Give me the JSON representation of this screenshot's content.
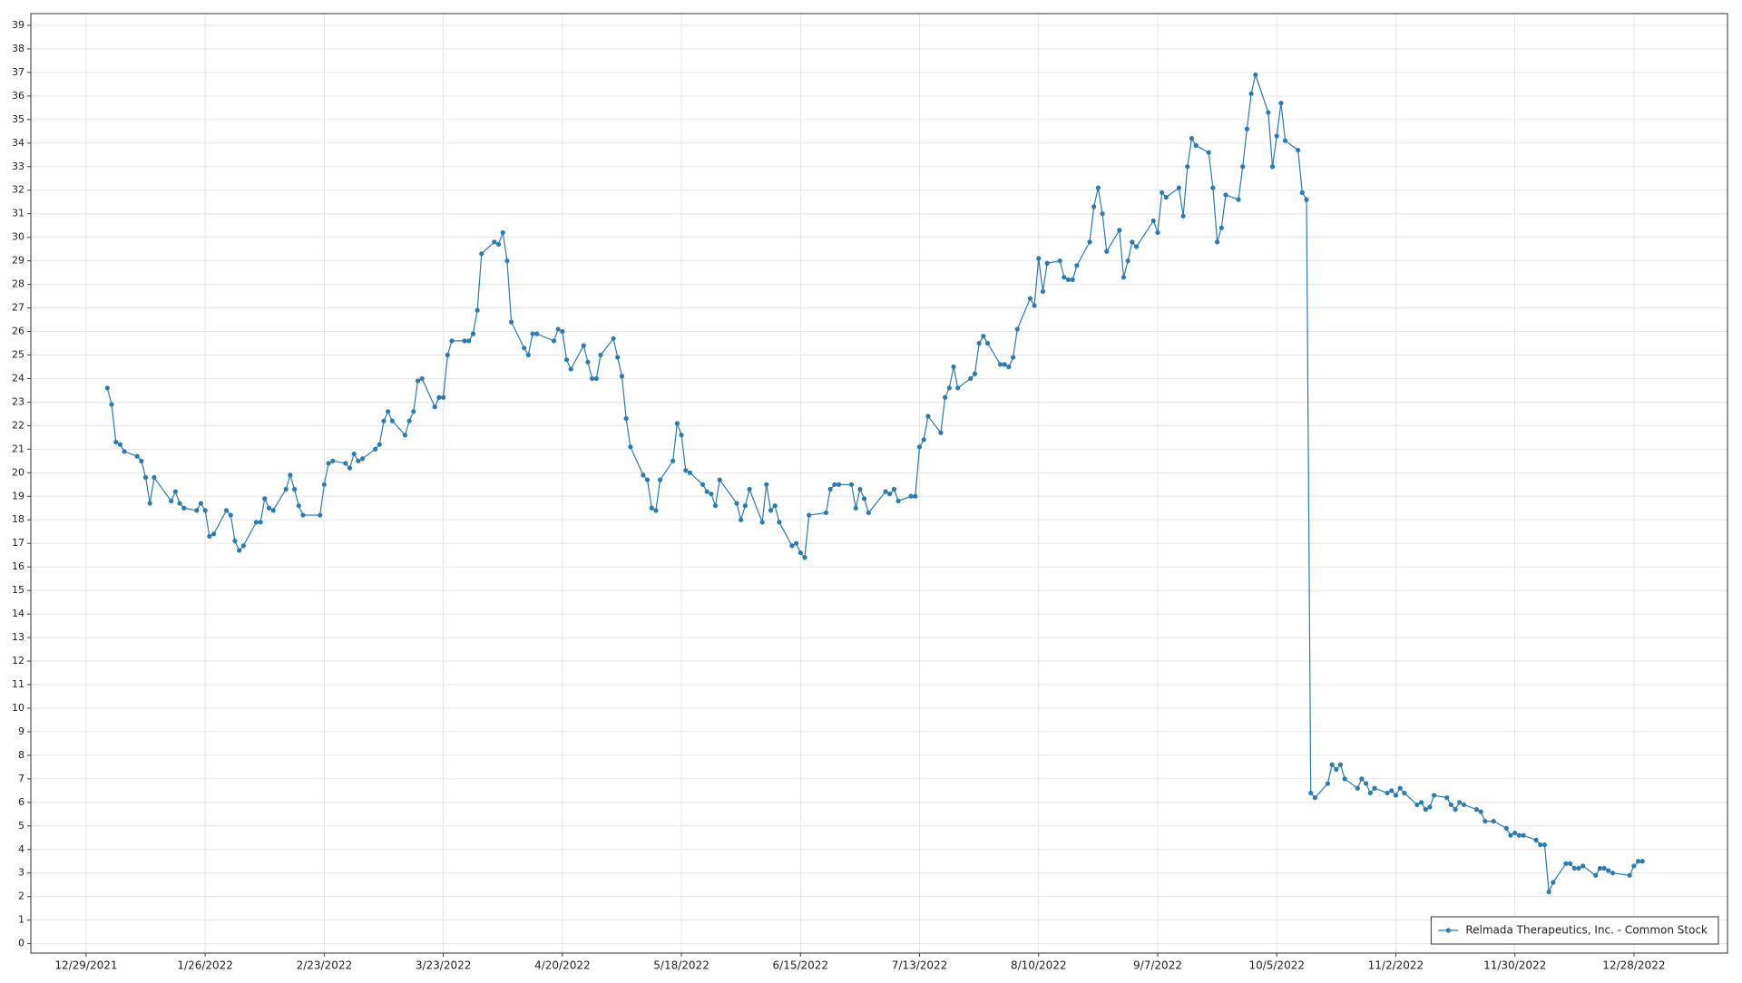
{
  "chart_data": {
    "type": "line",
    "x": [
      "2022-01-03",
      "2022-01-04",
      "2022-01-05",
      "2022-01-06",
      "2022-01-07",
      "2022-01-10",
      "2022-01-11",
      "2022-01-12",
      "2022-01-13",
      "2022-01-14",
      "2022-01-18",
      "2022-01-19",
      "2022-01-20",
      "2022-01-21",
      "2022-01-24",
      "2022-01-25",
      "2022-01-26",
      "2022-01-27",
      "2022-01-28",
      "2022-01-31",
      "2022-02-01",
      "2022-02-02",
      "2022-02-03",
      "2022-02-04",
      "2022-02-07",
      "2022-02-08",
      "2022-02-09",
      "2022-02-10",
      "2022-02-11",
      "2022-02-14",
      "2022-02-15",
      "2022-02-16",
      "2022-02-17",
      "2022-02-18",
      "2022-02-22",
      "2022-02-23",
      "2022-02-24",
      "2022-02-25",
      "2022-02-28",
      "2022-03-01",
      "2022-03-02",
      "2022-03-03",
      "2022-03-04",
      "2022-03-07",
      "2022-03-08",
      "2022-03-09",
      "2022-03-10",
      "2022-03-11",
      "2022-03-14",
      "2022-03-15",
      "2022-03-16",
      "2022-03-17",
      "2022-03-18",
      "2022-03-21",
      "2022-03-22",
      "2022-03-23",
      "2022-03-24",
      "2022-03-25",
      "2022-03-28",
      "2022-03-29",
      "2022-03-30",
      "2022-03-31",
      "2022-04-01",
      "2022-04-04",
      "2022-04-05",
      "2022-04-06",
      "2022-04-07",
      "2022-04-08",
      "2022-04-11",
      "2022-04-12",
      "2022-04-13",
      "2022-04-14",
      "2022-04-18",
      "2022-04-19",
      "2022-04-20",
      "2022-04-21",
      "2022-04-22",
      "2022-04-25",
      "2022-04-26",
      "2022-04-27",
      "2022-04-28",
      "2022-04-29",
      "2022-05-02",
      "2022-05-03",
      "2022-05-04",
      "2022-05-05",
      "2022-05-06",
      "2022-05-09",
      "2022-05-10",
      "2022-05-11",
      "2022-05-12",
      "2022-05-13",
      "2022-05-16",
      "2022-05-17",
      "2022-05-18",
      "2022-05-19",
      "2022-05-20",
      "2022-05-23",
      "2022-05-24",
      "2022-05-25",
      "2022-05-26",
      "2022-05-27",
      "2022-05-31",
      "2022-06-01",
      "2022-06-02",
      "2022-06-03",
      "2022-06-06",
      "2022-06-07",
      "2022-06-08",
      "2022-06-09",
      "2022-06-10",
      "2022-06-13",
      "2022-06-14",
      "2022-06-15",
      "2022-06-16",
      "2022-06-17",
      "2022-06-21",
      "2022-06-22",
      "2022-06-23",
      "2022-06-24",
      "2022-06-27",
      "2022-06-28",
      "2022-06-29",
      "2022-06-30",
      "2022-07-01",
      "2022-07-05",
      "2022-07-06",
      "2022-07-07",
      "2022-07-08",
      "2022-07-11",
      "2022-07-12",
      "2022-07-13",
      "2022-07-14",
      "2022-07-15",
      "2022-07-18",
      "2022-07-19",
      "2022-07-20",
      "2022-07-21",
      "2022-07-22",
      "2022-07-25",
      "2022-07-26",
      "2022-07-27",
      "2022-07-28",
      "2022-07-29",
      "2022-08-01",
      "2022-08-02",
      "2022-08-03",
      "2022-08-04",
      "2022-08-05",
      "2022-08-08",
      "2022-08-09",
      "2022-08-10",
      "2022-08-11",
      "2022-08-12",
      "2022-08-15",
      "2022-08-16",
      "2022-08-17",
      "2022-08-18",
      "2022-08-19",
      "2022-08-22",
      "2022-08-23",
      "2022-08-24",
      "2022-08-25",
      "2022-08-26",
      "2022-08-29",
      "2022-08-30",
      "2022-08-31",
      "2022-09-01",
      "2022-09-02",
      "2022-09-06",
      "2022-09-07",
      "2022-09-08",
      "2022-09-09",
      "2022-09-12",
      "2022-09-13",
      "2022-09-14",
      "2022-09-15",
      "2022-09-16",
      "2022-09-19",
      "2022-09-20",
      "2022-09-21",
      "2022-09-22",
      "2022-09-23",
      "2022-09-26",
      "2022-09-27",
      "2022-09-28",
      "2022-09-29",
      "2022-09-30",
      "2022-10-03",
      "2022-10-04",
      "2022-10-05",
      "2022-10-06",
      "2022-10-07",
      "2022-10-10",
      "2022-10-11",
      "2022-10-12",
      "2022-10-13",
      "2022-10-14",
      "2022-10-17",
      "2022-10-18",
      "2022-10-19",
      "2022-10-20",
      "2022-10-21",
      "2022-10-24",
      "2022-10-25",
      "2022-10-26",
      "2022-10-27",
      "2022-10-28",
      "2022-10-31",
      "2022-11-01",
      "2022-11-02",
      "2022-11-03",
      "2022-11-04",
      "2022-11-07",
      "2022-11-08",
      "2022-11-09",
      "2022-11-10",
      "2022-11-11",
      "2022-11-14",
      "2022-11-15",
      "2022-11-16",
      "2022-11-17",
      "2022-11-18",
      "2022-11-21",
      "2022-11-22",
      "2022-11-23",
      "2022-11-25",
      "2022-11-28",
      "2022-11-29",
      "2022-11-30",
      "2022-12-01",
      "2022-12-02",
      "2022-12-05",
      "2022-12-06",
      "2022-12-07",
      "2022-12-08",
      "2022-12-09",
      "2022-12-12",
      "2022-12-13",
      "2022-12-14",
      "2022-12-15",
      "2022-12-16",
      "2022-12-19",
      "2022-12-20",
      "2022-12-21",
      "2022-12-22",
      "2022-12-23",
      "2022-12-27",
      "2022-12-28",
      "2022-12-29",
      "2022-12-30"
    ],
    "series": [
      {
        "name": "Relmada Therapeutics, Inc. - Common Stock",
        "color": "#2a7ab5",
        "values": [
          23.6,
          22.9,
          21.3,
          21.2,
          20.9,
          20.7,
          20.5,
          19.8,
          18.7,
          19.8,
          18.8,
          19.2,
          18.7,
          18.5,
          18.4,
          18.7,
          18.4,
          17.3,
          17.4,
          18.4,
          18.2,
          17.1,
          16.7,
          16.9,
          17.9,
          17.9,
          18.9,
          18.5,
          18.4,
          19.3,
          19.9,
          19.3,
          18.6,
          18.2,
          18.2,
          19.5,
          20.4,
          20.5,
          20.4,
          20.2,
          20.8,
          20.5,
          20.6,
          21.0,
          21.2,
          22.2,
          22.6,
          22.2,
          21.6,
          22.2,
          22.6,
          23.9,
          24.0,
          22.8,
          23.2,
          23.2,
          25.0,
          25.6,
          25.6,
          25.6,
          25.9,
          26.9,
          29.3,
          29.8,
          29.7,
          30.2,
          29.0,
          26.4,
          25.3,
          25.0,
          25.9,
          25.9,
          25.6,
          26.1,
          26.0,
          24.8,
          24.4,
          25.4,
          24.7,
          24.0,
          24.0,
          25.0,
          25.7,
          24.9,
          24.1,
          22.3,
          21.1,
          19.9,
          19.7,
          18.5,
          18.4,
          19.7,
          20.5,
          22.1,
          21.6,
          20.1,
          20.0,
          19.5,
          19.2,
          19.1,
          18.6,
          19.7,
          18.7,
          18.0,
          18.6,
          19.3,
          17.9,
          19.5,
          18.4,
          18.6,
          17.9,
          16.9,
          17.0,
          16.6,
          16.4,
          18.2,
          18.3,
          19.3,
          19.5,
          19.5,
          19.5,
          18.5,
          19.3,
          18.9,
          18.3,
          19.2,
          19.1,
          19.3,
          18.8,
          19.0,
          19.0,
          21.1,
          21.4,
          22.4,
          21.7,
          23.2,
          23.6,
          24.5,
          23.6,
          24.0,
          24.2,
          25.5,
          25.8,
          25.5,
          24.6,
          24.6,
          24.5,
          24.9,
          26.1,
          27.4,
          27.1,
          29.1,
          27.7,
          28.9,
          29.0,
          28.3,
          28.2,
          28.2,
          28.8,
          29.8,
          31.3,
          32.1,
          31.0,
          29.4,
          30.3,
          28.3,
          29.0,
          29.8,
          29.6,
          30.7,
          30.2,
          31.9,
          31.7,
          32.1,
          30.9,
          33.0,
          34.2,
          33.9,
          33.6,
          32.1,
          29.8,
          30.4,
          31.8,
          31.6,
          33.0,
          34.6,
          36.1,
          36.9,
          35.3,
          33.0,
          34.3,
          35.7,
          34.1,
          33.7,
          31.9,
          31.6,
          6.4,
          6.2,
          6.8,
          7.6,
          7.4,
          7.6,
          7.0,
          6.6,
          7.0,
          6.8,
          6.4,
          6.6,
          6.4,
          6.5,
          6.3,
          6.6,
          6.4,
          5.9,
          6.0,
          5.7,
          5.8,
          6.3,
          6.2,
          5.9,
          5.7,
          6.0,
          5.9,
          5.7,
          5.6,
          5.2,
          5.2,
          4.9,
          4.6,
          4.7,
          4.6,
          4.6,
          4.4,
          4.2,
          4.2,
          2.2,
          2.6,
          3.4,
          3.4,
          3.2,
          3.2,
          3.3,
          2.9,
          3.2,
          3.2,
          3.1,
          3.0,
          2.9,
          3.3,
          3.5,
          3.5
        ]
      }
    ],
    "xlim": [
      "2021-12-16",
      "2023-01-19"
    ],
    "xticks": [
      {
        "value": "2021-12-29",
        "label": "12/29/2021"
      },
      {
        "value": "2022-01-26",
        "label": "1/26/2022"
      },
      {
        "value": "2022-02-23",
        "label": "2/23/2022"
      },
      {
        "value": "2022-03-23",
        "label": "3/23/2022"
      },
      {
        "value": "2022-04-20",
        "label": "4/20/2022"
      },
      {
        "value": "2022-05-18",
        "label": "5/18/2022"
      },
      {
        "value": "2022-06-15",
        "label": "6/15/2022"
      },
      {
        "value": "2022-07-13",
        "label": "7/13/2022"
      },
      {
        "value": "2022-08-10",
        "label": "8/10/2022"
      },
      {
        "value": "2022-09-07",
        "label": "9/7/2022"
      },
      {
        "value": "2022-10-05",
        "label": "10/5/2022"
      },
      {
        "value": "2022-11-02",
        "label": "11/2/2022"
      },
      {
        "value": "2022-11-30",
        "label": "11/30/2022"
      },
      {
        "value": "2022-12-28",
        "label": "12/28/2022"
      }
    ],
    "ylim": [
      -0.4,
      39.5
    ],
    "yticks": [
      0,
      1,
      2,
      3,
      4,
      5,
      6,
      7,
      8,
      9,
      10,
      11,
      12,
      13,
      14,
      15,
      16,
      17,
      18,
      19,
      20,
      21,
      22,
      23,
      24,
      25,
      26,
      27,
      28,
      29,
      30,
      31,
      32,
      33,
      34,
      35,
      36,
      37,
      38,
      39
    ],
    "grid": true,
    "legend": "lower right"
  }
}
